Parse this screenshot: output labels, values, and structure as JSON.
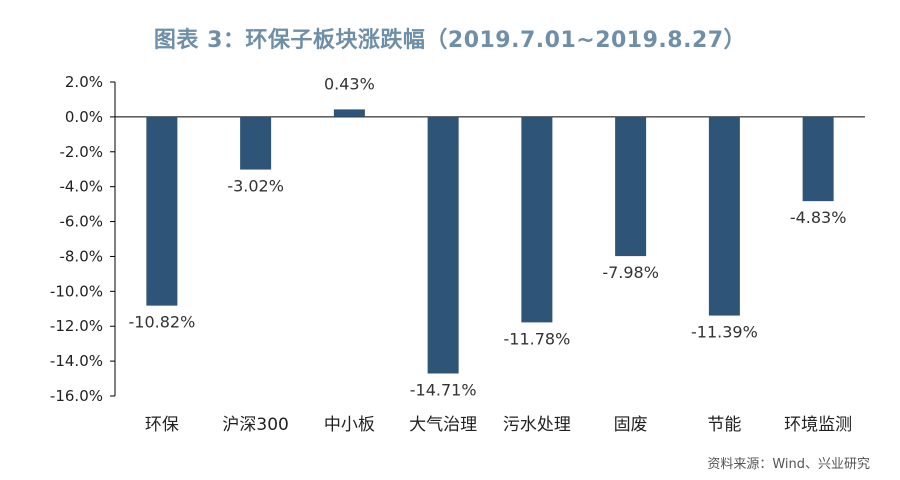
{
  "chart_data": {
    "type": "bar",
    "title": "图表 3：环保子板块涨跌幅（2019.7.01~2019.8.27）",
    "source": "资料来源：Wind、兴业研究",
    "categories": [
      "环保",
      "沪深300",
      "中小板",
      "大气治理",
      "污水处理",
      "固废",
      "节能",
      "环境监测"
    ],
    "values": [
      -10.82,
      -3.02,
      0.43,
      -14.71,
      -11.78,
      -7.98,
      -11.39,
      -4.83
    ],
    "data_labels": [
      "-10.82%",
      "-3.02%",
      "0.43%",
      "-14.71%",
      "-11.78%",
      "-7.98%",
      "-11.39%",
      "-4.83%"
    ],
    "y_ticks": [
      2,
      0,
      -2,
      -4,
      -6,
      -8,
      -10,
      -12,
      -14,
      -16
    ],
    "y_tick_labels": [
      "2.0%",
      "0.0%",
      "-2.0%",
      "-4.0%",
      "-6.0%",
      "-8.0%",
      "-10.0%",
      "-12.0%",
      "-14.0%",
      "-16.0%"
    ],
    "ylim": [
      -16,
      2
    ],
    "xlabel": "",
    "ylabel": "",
    "grid": false,
    "legend": "none",
    "bar_color": "#2e5478",
    "title_color": "#6f8fa8"
  }
}
